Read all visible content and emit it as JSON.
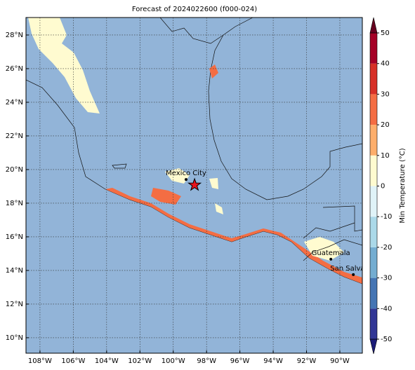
{
  "title": "Forecast of 2024022600 (f000-024)",
  "map": {
    "xlim": [
      -108.84,
      -88.65
    ],
    "ylim": [
      9.08,
      29.04
    ],
    "xticks": [
      {
        "value": -108,
        "label": "108°W"
      },
      {
        "value": -106,
        "label": "106°W"
      },
      {
        "value": -104,
        "label": "104°W"
      },
      {
        "value": -102,
        "label": "102°W"
      },
      {
        "value": -100,
        "label": "100°W"
      },
      {
        "value": -98,
        "label": "98°W"
      },
      {
        "value": -96,
        "label": "96°W"
      },
      {
        "value": -94,
        "label": "94°W"
      },
      {
        "value": -92,
        "label": "92°W"
      },
      {
        "value": -90,
        "label": "90°W"
      }
    ],
    "yticks": [
      {
        "value": 10,
        "label": "10°N"
      },
      {
        "value": 12,
        "label": "12°N"
      },
      {
        "value": 14,
        "label": "14°N"
      },
      {
        "value": 16,
        "label": "16°N"
      },
      {
        "value": 18,
        "label": "18°N"
      },
      {
        "value": 20,
        "label": "20°N"
      },
      {
        "value": 22,
        "label": "22°N"
      },
      {
        "value": 24,
        "label": "24°N"
      },
      {
        "value": 26,
        "label": "26°N"
      },
      {
        "value": 28,
        "label": "28°N"
      }
    ],
    "grid": true,
    "cities": [
      {
        "name": "Mexico City",
        "lon": -99.23,
        "lat": 19.41
      },
      {
        "name": "Guatemala",
        "lon": -90.54,
        "lat": 14.67
      },
      {
        "name": "San Salvador",
        "lon": -89.19,
        "lat": 13.75
      }
    ],
    "marker": {
      "lon": -98.72,
      "lat": 19.08,
      "color": "#e8141c"
    }
  },
  "colorbar": {
    "label": "Min Temperature (°C)",
    "levels": [
      -50,
      -40,
      -30,
      -20,
      -10,
      0,
      10,
      20,
      30,
      40,
      50
    ],
    "colors": [
      "#313695",
      "#4575b4",
      "#74add1",
      "#abd9e9",
      "#e0f3f8",
      "#fffbd0",
      "#fdae6b",
      "#f46d43",
      "#d73027",
      "#a50026"
    ],
    "extend_colors": [
      "#1c1c78",
      "#67001f"
    ]
  }
}
